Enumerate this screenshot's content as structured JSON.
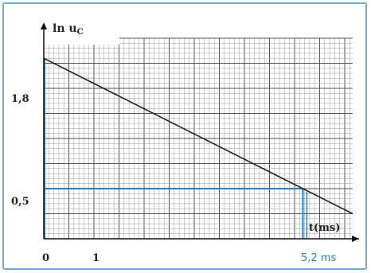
{
  "chart_data": {
    "type": "line",
    "ylabel_main": "ln u",
    "ylabel_sub": "C",
    "xlabel": "t(ms)",
    "x_ticks": [
      {
        "value": 0,
        "label": "0"
      },
      {
        "value": 1,
        "label": "1"
      }
    ],
    "y_ticks": [
      {
        "value": 1.8,
        "label": "1,8"
      },
      {
        "value": 0.5,
        "label": "0,5"
      }
    ],
    "xlim": [
      0,
      6.2
    ],
    "ylim": [
      0,
      2.0
    ],
    "series": [
      {
        "x": [
          0,
          5.2,
          6.2
        ],
        "y": [
          1.8,
          0.5,
          0.25
        ]
      }
    ],
    "annotation": {
      "x": 5.2,
      "y": 0.5,
      "label": "5,2 ms"
    },
    "colors": {
      "line": "#222222",
      "guide": "#2a7fc4",
      "grid_major": "#555555",
      "grid_minor": "#9a9a9a"
    }
  }
}
